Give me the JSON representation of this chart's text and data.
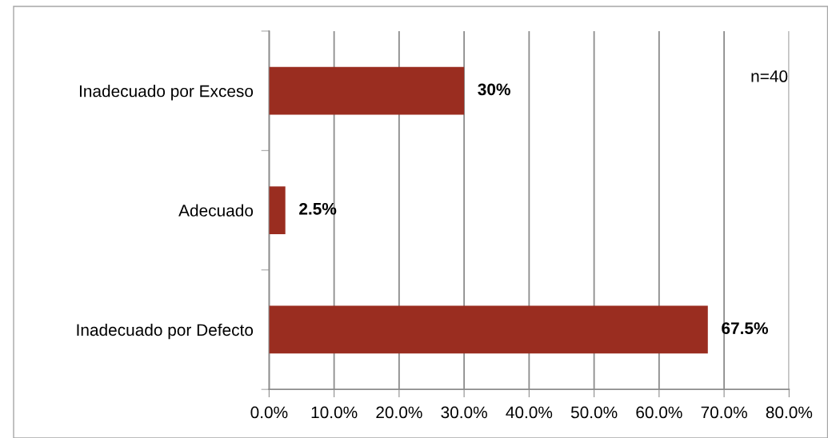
{
  "chart_data": {
    "type": "bar",
    "orientation": "horizontal",
    "categories": [
      "Inadecuado por Exceso",
      "Adecuado",
      "Inadecuado por Defecto"
    ],
    "values": [
      30,
      2.5,
      67.5
    ],
    "color": "#9a2d20",
    "value_labels": [
      "30%",
      "2.5%",
      "67.5%"
    ],
    "xlim": [
      0,
      80
    ],
    "xticks": [
      {
        "value": 0,
        "label": "0.0%"
      },
      {
        "value": 10,
        "label": "10.0%"
      },
      {
        "value": 20,
        "label": "20.0%"
      },
      {
        "value": 30,
        "label": "30.0%"
      },
      {
        "value": 40,
        "label": "40.0%"
      },
      {
        "value": 50,
        "label": "50.0%"
      },
      {
        "value": 60,
        "label": "60.0%"
      },
      {
        "value": 70,
        "label": "70.0%"
      },
      {
        "value": 80,
        "label": "80.0%"
      }
    ],
    "grid": "x",
    "annotations": [
      "n=40"
    ]
  }
}
